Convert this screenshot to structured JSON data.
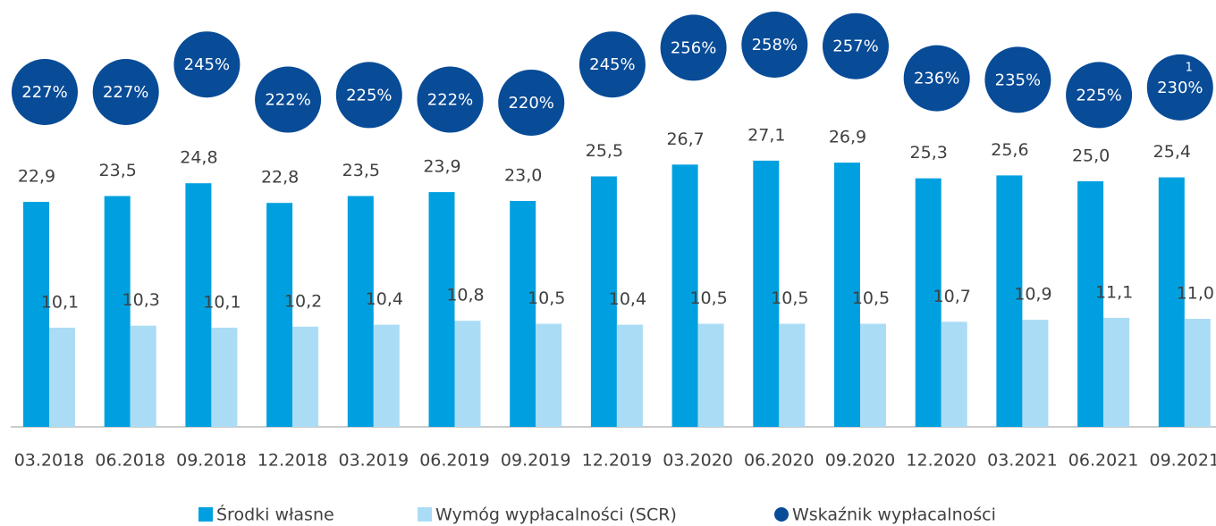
{
  "chart_data": {
    "type": "bar",
    "categories": [
      "03.2018",
      "06.2018",
      "09.2018",
      "12.2018",
      "03.2019",
      "06.2019",
      "09.2019",
      "12.2019",
      "03.2020",
      "06.2020",
      "09.2020",
      "12.2020",
      "03.2021",
      "06.2021",
      "09.2021"
    ],
    "series": [
      {
        "name": "Środki własne",
        "color": "#00a0e0",
        "values": [
          22.9,
          23.5,
          24.8,
          22.8,
          23.5,
          23.9,
          23.0,
          25.5,
          26.7,
          27.1,
          26.9,
          25.3,
          25.6,
          25.0,
          25.4
        ],
        "value_labels": [
          "22,9",
          "23,5",
          "24,8",
          "22,8",
          "23,5",
          "23,9",
          "23,0",
          "25,5",
          "26,7",
          "27,1",
          "26,9",
          "25,3",
          "25,6",
          "25,0",
          "25,4"
        ]
      },
      {
        "name": "Wymóg wypłacalności (SCR)",
        "color": "#abdcf6",
        "values": [
          10.1,
          10.3,
          10.1,
          10.2,
          10.4,
          10.8,
          10.5,
          10.4,
          10.5,
          10.5,
          10.5,
          10.7,
          10.9,
          11.1,
          11.0
        ],
        "value_labels": [
          "10,1",
          "10,3",
          "10,1",
          "10,2",
          "10,4",
          "10,8",
          "10,5",
          "10,4",
          "10,5",
          "10,5",
          "10,5",
          "10,7",
          "10,9",
          "11,1",
          "11,0"
        ]
      },
      {
        "name": "Wskaźnik wypłacalności",
        "color": "#084b97",
        "values": [
          227,
          227,
          245,
          222,
          225,
          222,
          220,
          245,
          256,
          258,
          257,
          236,
          235,
          225,
          230
        ],
        "value_labels": [
          "227%",
          "227%",
          "245%",
          "222%",
          "225%",
          "222%",
          "220%",
          "245%",
          "256%",
          "258%",
          "257%",
          "236%",
          "235%",
          "225%",
          "230%"
        ]
      }
    ],
    "annotation": "1"
  }
}
